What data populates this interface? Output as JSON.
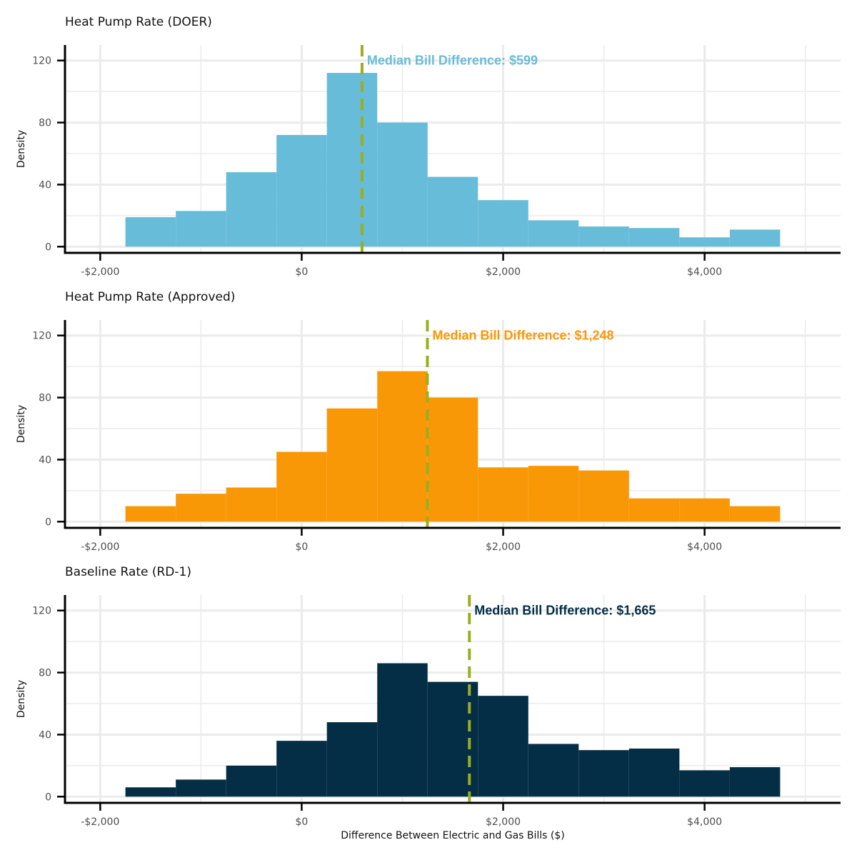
{
  "chart_data": [
    {
      "type": "bar",
      "title": "Heat Pump Rate (DOER)",
      "ylabel": "Density",
      "xlabel": "",
      "color": "#67BCD9",
      "bin_edges": [
        -1750,
        -1250,
        -750,
        -250,
        250,
        750,
        1250,
        1750,
        2250,
        2750,
        3250,
        3750,
        4250,
        4750
      ],
      "values": [
        19,
        23,
        48,
        72,
        112,
        80,
        45,
        30,
        17,
        13,
        12,
        6,
        11
      ],
      "median": 599,
      "median_label": "Median Bill Difference:  $599",
      "xlim": [
        -2350,
        5350
      ],
      "ylim": [
        -4,
        130
      ],
      "x_ticks": [
        -2000,
        0,
        2000,
        4000
      ],
      "x_tick_labels": [
        "-$2,000",
        "$0",
        "$2,000",
        "$4,000"
      ],
      "y_ticks": [
        0,
        40,
        80,
        120
      ],
      "y_tick_labels": [
        "0",
        "40",
        "80",
        "120"
      ]
    },
    {
      "type": "bar",
      "title": "Heat Pump Rate (Approved)",
      "ylabel": "Density",
      "xlabel": "",
      "color": "#F99807",
      "bin_edges": [
        -1750,
        -1250,
        -750,
        -250,
        250,
        750,
        1250,
        1750,
        2250,
        2750,
        3250,
        3750,
        4250,
        4750
      ],
      "values": [
        10,
        18,
        22,
        45,
        73,
        97,
        80,
        35,
        36,
        33,
        15,
        15,
        10
      ],
      "median": 1248,
      "median_label": "Median Bill Difference:  $1,248",
      "xlim": [
        -2350,
        5350
      ],
      "ylim": [
        -4,
        130
      ],
      "x_ticks": [
        -2000,
        0,
        2000,
        4000
      ],
      "x_tick_labels": [
        "-$2,000",
        "$0",
        "$2,000",
        "$4,000"
      ],
      "y_ticks": [
        0,
        40,
        80,
        120
      ],
      "y_tick_labels": [
        "0",
        "40",
        "80",
        "120"
      ]
    },
    {
      "type": "bar",
      "title": "Baseline Rate (RD-1)",
      "ylabel": "Density",
      "xlabel": "Difference Between Electric and Gas Bills ($)",
      "color": "#042E45",
      "bin_edges": [
        -1750,
        -1250,
        -750,
        -250,
        250,
        750,
        1250,
        1750,
        2250,
        2750,
        3250,
        3750,
        4250,
        4750
      ],
      "values": [
        6,
        11,
        20,
        36,
        48,
        86,
        74,
        65,
        34,
        30,
        31,
        17,
        19
      ],
      "median": 1665,
      "median_label": "Median Bill Difference:  $1,665",
      "xlim": [
        -2350,
        5350
      ],
      "ylim": [
        -4,
        130
      ],
      "x_ticks": [
        -2000,
        0,
        2000,
        4000
      ],
      "x_tick_labels": [
        "-$2,000",
        "$0",
        "$2,000",
        "$4,000"
      ],
      "y_ticks": [
        0,
        40,
        80,
        120
      ],
      "y_tick_labels": [
        "0",
        "40",
        "80",
        "120"
      ]
    }
  ],
  "median_line_color": "#9AAE1E",
  "grid_color": "#EBEBEB",
  "axis_color": "#000000"
}
